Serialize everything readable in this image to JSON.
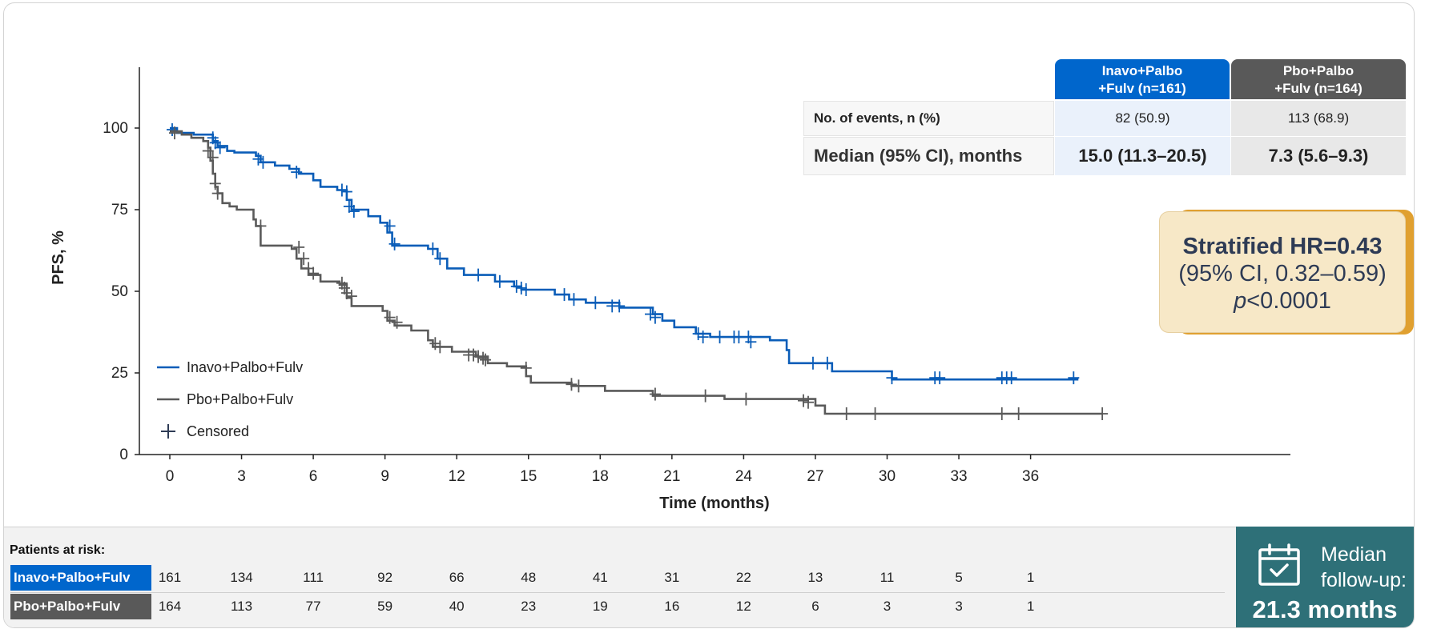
{
  "colors": {
    "inavo": "#0a5db8",
    "pbo": "#5a5a5a",
    "censor": "#2e3b55",
    "inavo_header": "#0066cc",
    "pbo_header": "#595959",
    "hr_box": "#f7e8c7",
    "followup": "#2e7078"
  },
  "chart_data": {
    "type": "line",
    "subtype": "kaplan-meier",
    "xlabel": "Time (months)",
    "ylabel": "PFS, %",
    "xlim": [
      0,
      39
    ],
    "ylim": [
      0,
      100
    ],
    "xticks": [
      "0",
      "3",
      "6",
      "9",
      "12",
      "15",
      "18",
      "21",
      "24",
      "27",
      "30",
      "33",
      "36"
    ],
    "yticks": [
      "0",
      "25",
      "50",
      "75",
      "100"
    ],
    "grid": false,
    "legend_position": "bottom-left",
    "legend": [
      {
        "name": "Inavo+Palbo+Fulv",
        "color": "#0a5db8",
        "mark": "line"
      },
      {
        "name": "Pbo+Palbo+Fulv",
        "color": "#5a5a5a",
        "mark": "line"
      },
      {
        "name": "Censored",
        "color": "#2e3b55",
        "mark": "plus"
      }
    ],
    "series": [
      {
        "name": "Inavo+Palbo+Fulv",
        "color": "#0a5db8",
        "steps": [
          [
            0,
            100
          ],
          [
            0.3,
            98.5
          ],
          [
            1.0,
            98.0
          ],
          [
            1.8,
            96
          ],
          [
            2.0,
            94.5
          ],
          [
            2.4,
            93
          ],
          [
            2.7,
            92.5
          ],
          [
            3.6,
            91.5
          ],
          [
            3.8,
            89.5
          ],
          [
            4.4,
            88.5
          ],
          [
            5.0,
            87.5
          ],
          [
            5.4,
            86
          ],
          [
            6.0,
            84
          ],
          [
            6.3,
            82
          ],
          [
            7.0,
            81
          ],
          [
            7.4,
            78
          ],
          [
            7.6,
            75
          ],
          [
            8.3,
            73
          ],
          [
            8.8,
            71
          ],
          [
            9.1,
            68
          ],
          [
            9.3,
            64
          ],
          [
            10.8,
            63
          ],
          [
            11.2,
            60
          ],
          [
            11.6,
            57
          ],
          [
            12.3,
            55
          ],
          [
            13.6,
            53
          ],
          [
            14.4,
            51.5
          ],
          [
            14.7,
            50.5
          ],
          [
            16.1,
            49
          ],
          [
            16.7,
            47.5
          ],
          [
            17.4,
            46.5
          ],
          [
            18.8,
            45
          ],
          [
            20.2,
            43
          ],
          [
            20.6,
            41
          ],
          [
            21.1,
            39
          ],
          [
            22.0,
            37
          ],
          [
            22.6,
            36
          ],
          [
            25.1,
            35
          ],
          [
            25.8,
            32
          ],
          [
            25.9,
            28
          ],
          [
            27.7,
            25.5
          ],
          [
            30.2,
            23
          ],
          [
            38.0,
            23
          ]
        ],
        "censored": [
          [
            0.1,
            99.5
          ],
          [
            1.8,
            97
          ],
          [
            1.9,
            95.5
          ],
          [
            2.1,
            94
          ],
          [
            3.7,
            90.5
          ],
          [
            3.9,
            89.5
          ],
          [
            5.3,
            86.5
          ],
          [
            7.2,
            81
          ],
          [
            7.4,
            80.5
          ],
          [
            7.5,
            76
          ],
          [
            7.7,
            74.5
          ],
          [
            9.2,
            70
          ],
          [
            9.4,
            64.5
          ],
          [
            11.0,
            63
          ],
          [
            11.3,
            60
          ],
          [
            12.9,
            55
          ],
          [
            13.8,
            53
          ],
          [
            14.5,
            51.5
          ],
          [
            14.7,
            51
          ],
          [
            14.9,
            50.5
          ],
          [
            16.5,
            49
          ],
          [
            16.9,
            47.5
          ],
          [
            17.8,
            46.5
          ],
          [
            18.5,
            45.5
          ],
          [
            18.8,
            45.5
          ],
          [
            20.1,
            43
          ],
          [
            20.3,
            42
          ],
          [
            22.1,
            37
          ],
          [
            22.3,
            36
          ],
          [
            23.0,
            36
          ],
          [
            23.6,
            36
          ],
          [
            23.8,
            36
          ],
          [
            24.2,
            36
          ],
          [
            24.3,
            34.5
          ],
          [
            26.9,
            28
          ],
          [
            27.5,
            28
          ],
          [
            30.2,
            23.5
          ],
          [
            32.0,
            23.5
          ],
          [
            32.2,
            23.5
          ],
          [
            34.8,
            23.5
          ],
          [
            35.0,
            23.5
          ],
          [
            35.2,
            23.5
          ],
          [
            37.8,
            23.5
          ]
        ]
      },
      {
        "name": "Pbo+Palbo+Fulv",
        "color": "#5a5a5a",
        "steps": [
          [
            0,
            99
          ],
          [
            0.5,
            98
          ],
          [
            0.9,
            97
          ],
          [
            1.4,
            96
          ],
          [
            1.6,
            94
          ],
          [
            1.7,
            90
          ],
          [
            1.8,
            86
          ],
          [
            1.9,
            82
          ],
          [
            2.0,
            80
          ],
          [
            2.2,
            77
          ],
          [
            2.5,
            76
          ],
          [
            2.8,
            75
          ],
          [
            3.5,
            72
          ],
          [
            3.6,
            70
          ],
          [
            3.8,
            64
          ],
          [
            5.1,
            63
          ],
          [
            5.3,
            60
          ],
          [
            5.5,
            57
          ],
          [
            5.8,
            55
          ],
          [
            6.3,
            53
          ],
          [
            7.1,
            52
          ],
          [
            7.4,
            48
          ],
          [
            7.6,
            45.5
          ],
          [
            8.9,
            44
          ],
          [
            9.1,
            41
          ],
          [
            9.4,
            39.5
          ],
          [
            10.1,
            38
          ],
          [
            10.8,
            35
          ],
          [
            11.0,
            33
          ],
          [
            11.8,
            31.5
          ],
          [
            12.8,
            30
          ],
          [
            13.3,
            28
          ],
          [
            14.1,
            27
          ],
          [
            14.9,
            24
          ],
          [
            15.1,
            22
          ],
          [
            16.8,
            21
          ],
          [
            18.2,
            19.5
          ],
          [
            20.2,
            18
          ],
          [
            23.2,
            17
          ],
          [
            27.0,
            15
          ],
          [
            27.4,
            12.5
          ],
          [
            39.0,
            12.5
          ]
        ],
        "censored": [
          [
            0.2,
            98.5
          ],
          [
            1.6,
            93
          ],
          [
            1.8,
            91
          ],
          [
            1.9,
            83
          ],
          [
            2.0,
            80
          ],
          [
            3.8,
            70
          ],
          [
            5.4,
            63.5
          ],
          [
            5.6,
            60
          ],
          [
            5.8,
            57
          ],
          [
            6.0,
            55.5
          ],
          [
            7.2,
            52.5
          ],
          [
            7.3,
            51
          ],
          [
            7.4,
            49.5
          ],
          [
            7.6,
            48.5
          ],
          [
            9.2,
            42
          ],
          [
            9.5,
            40.5
          ],
          [
            11.1,
            34
          ],
          [
            11.3,
            33
          ],
          [
            12.5,
            30.5
          ],
          [
            12.7,
            30.5
          ],
          [
            12.9,
            30
          ],
          [
            13.1,
            29.5
          ],
          [
            13.2,
            29
          ],
          [
            14.9,
            26.5
          ],
          [
            16.8,
            21.5
          ],
          [
            17.1,
            21
          ],
          [
            20.3,
            18.5
          ],
          [
            22.4,
            18
          ],
          [
            24.1,
            17
          ],
          [
            26.5,
            16.5
          ],
          [
            26.7,
            16
          ],
          [
            28.3,
            12.5
          ],
          [
            29.5,
            12.5
          ],
          [
            34.8,
            12.5
          ],
          [
            35.5,
            12.5
          ],
          [
            39.0,
            12.5
          ]
        ]
      }
    ]
  },
  "table": {
    "header_inavo_line1": "Inavo+Palbo",
    "header_inavo_line2": "+Fulv (n=161)",
    "header_pbo_line1": "Pbo+Palbo",
    "header_pbo_line2": "+Fulv (n=164)",
    "rows": [
      {
        "label": "No. of events, n (%)",
        "inavo": "82 (50.9)",
        "pbo": "113 (68.9)"
      },
      {
        "label": "Median (95% CI), months",
        "inavo": "15.0 (11.3–20.5)",
        "pbo": "7.3 (5.6–9.3)"
      }
    ]
  },
  "hr": {
    "line1": "Stratified HR=0.43",
    "line2": "(95% CI, 0.32–0.59)",
    "p_symbol": "p",
    "p_rest": "<0.0001"
  },
  "at_risk": {
    "title": "Patients at risk:",
    "inavo_label": "Inavo+Palbo+Fulv",
    "pbo_label": "Pbo+Palbo+Fulv",
    "inavo": [
      "161",
      "134",
      "111",
      "92",
      "66",
      "48",
      "41",
      "31",
      "22",
      "13",
      "11",
      "5",
      "1"
    ],
    "pbo": [
      "164",
      "113",
      "77",
      "59",
      "40",
      "23",
      "19",
      "16",
      "12",
      "6",
      "3",
      "3",
      "1"
    ]
  },
  "followup": {
    "icon": "calendar-check-icon",
    "line1": "Median",
    "line2": "follow-up:",
    "value": "21.3 months"
  }
}
